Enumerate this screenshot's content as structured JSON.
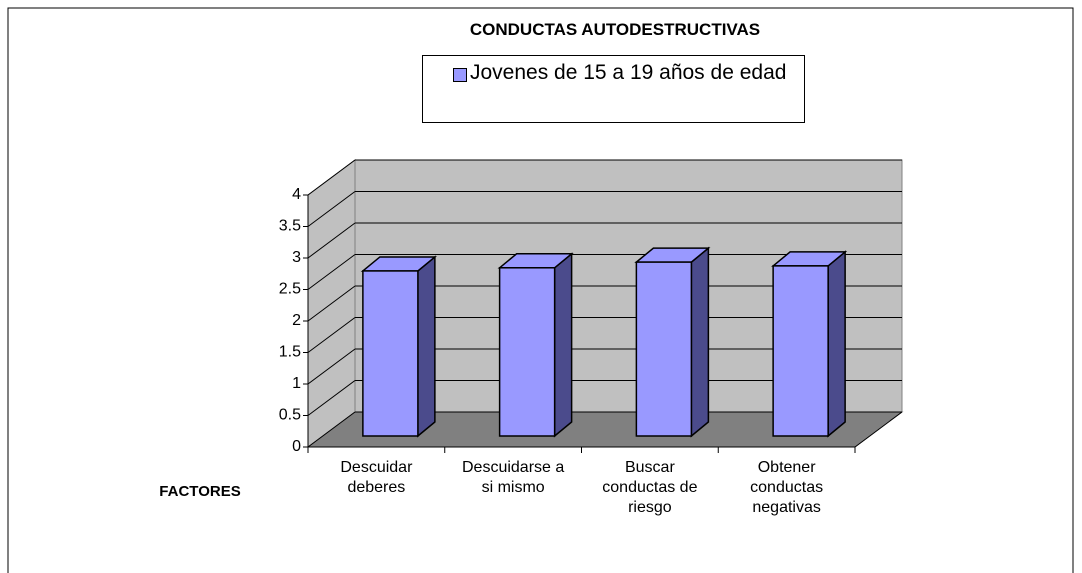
{
  "chart_data": {
    "type": "bar3d",
    "title": "CONDUCTAS AUTODESTRUCTIVAS",
    "x_label": "FACTORES",
    "categories": [
      "Descuidar deberes",
      "Descuidarse a si mismo",
      "Buscar conductas de riesgo",
      "Obtener conductas negativas"
    ],
    "series": [
      {
        "name": "Jovenes de 15 a 19 años de edad",
        "color": "#9999ff",
        "values": [
          2.62,
          2.67,
          2.76,
          2.7
        ]
      }
    ],
    "ylim": [
      0,
      4
    ],
    "yticks": [
      0,
      0.5,
      1,
      1.5,
      2,
      2.5,
      3,
      3.5,
      4
    ],
    "grid": true
  }
}
